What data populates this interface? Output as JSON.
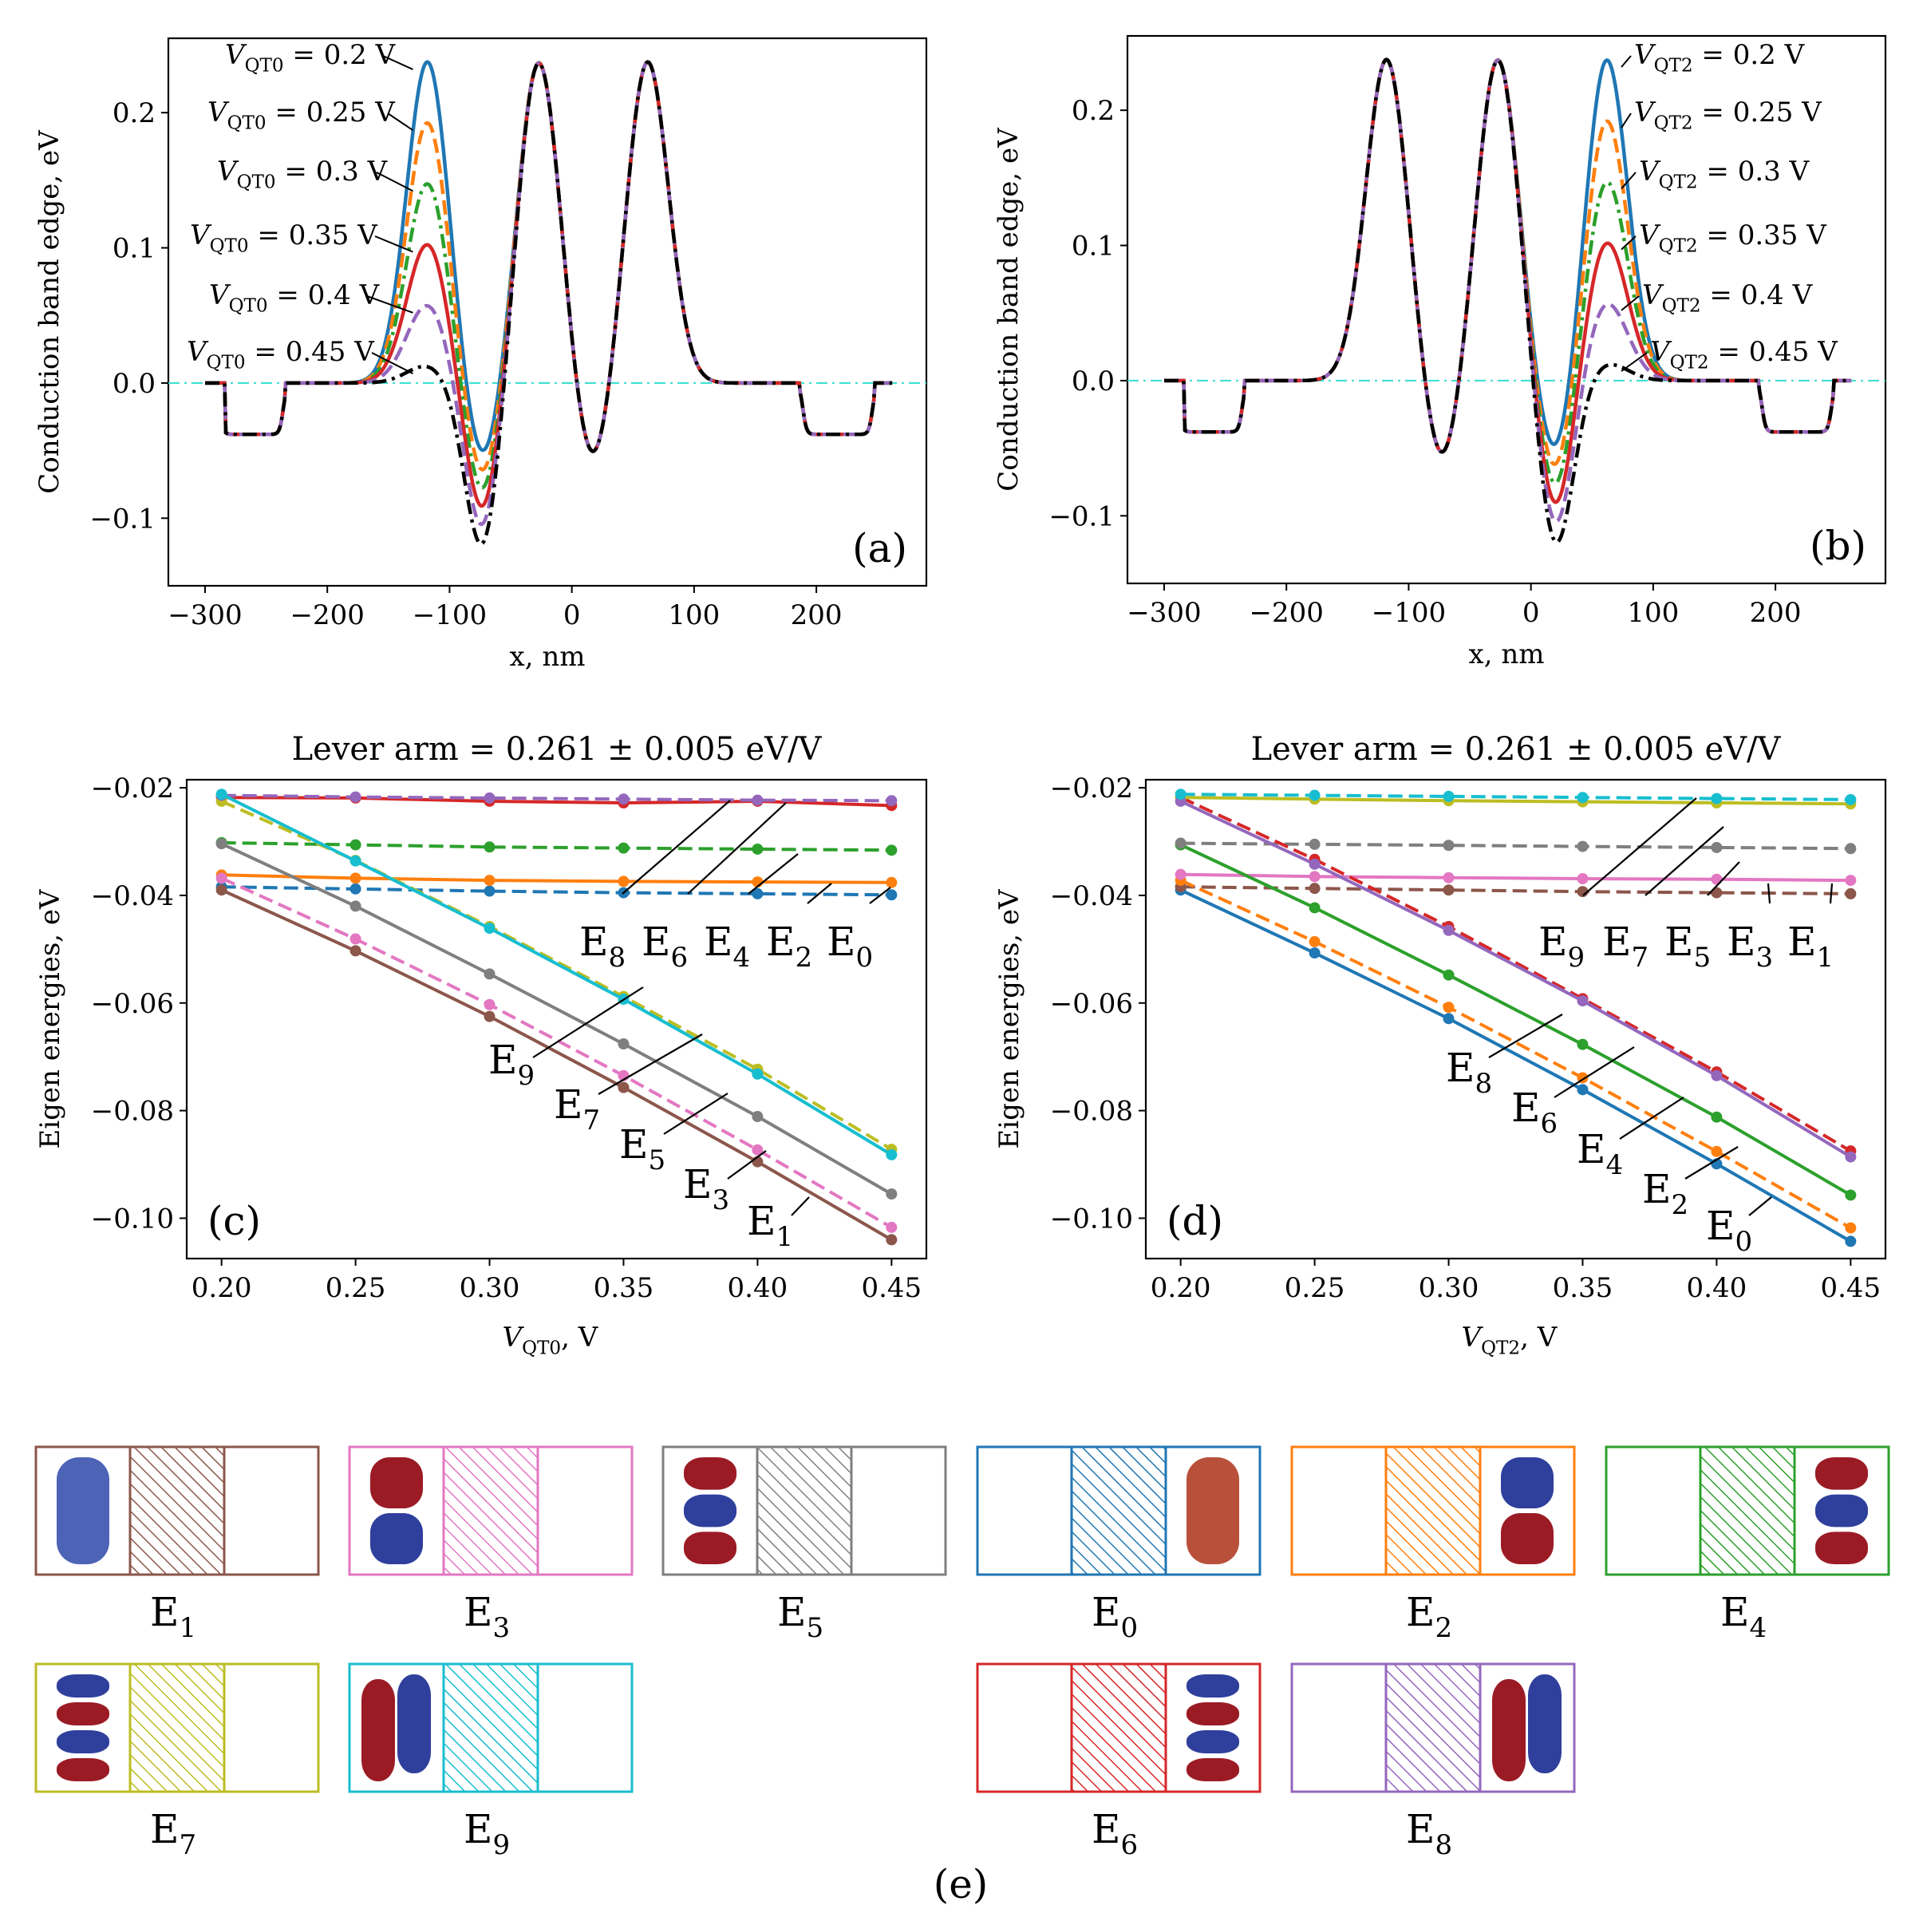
{
  "colors": {
    "c0": "#1f77b4",
    "c1": "#ff7f0e",
    "c2": "#2ca02c",
    "c3": "#d62728",
    "c4": "#9467bd",
    "c5": "#8c564b",
    "c6": "#e377c2",
    "c7": "#7f7f7f",
    "c8": "#bcbd22",
    "c9": "#17becf",
    "black": "#000000",
    "zero_line": "#40e0d0",
    "blob_red": "#9b1b25",
    "blob_blue": "#2f3f9c",
    "blob_orange": "#b8503a",
    "blob_light_blue": "#4c63b6"
  },
  "chart_data": [
    {
      "id": "a",
      "type": "line",
      "panel_label": "(a)",
      "xlabel": "x, nm",
      "ylabel": "Conduction band edge, eV",
      "xlim": [
        -330,
        290
      ],
      "ylim": [
        -0.15,
        0.255
      ],
      "xticks": [
        -300,
        -200,
        -100,
        0,
        100,
        200
      ],
      "xtick_labels": [
        "−300",
        "−200",
        "−100",
        "0",
        "100",
        "200"
      ],
      "yticks": [
        -0.1,
        0.0,
        0.1,
        0.2
      ],
      "ytick_labels": [
        "−0.1",
        "0.0",
        "0.1",
        "0.2"
      ],
      "varied_barrier": "left",
      "reference_line": {
        "y": 0.0,
        "style": "dash-dot"
      },
      "series_note": "profiles for six gate voltages",
      "series": [
        {
          "voltage": 0.2,
          "barrier_peak": 0.238,
          "well_min": -0.063,
          "color_key": "c0",
          "dash": "solid"
        },
        {
          "voltage": 0.25,
          "barrier_peak": 0.193,
          "well_min": -0.076,
          "color_key": "c1",
          "dash": "dashed"
        },
        {
          "voltage": 0.3,
          "barrier_peak": 0.148,
          "well_min": -0.088,
          "color_key": "c2",
          "dash": "dashdot"
        },
        {
          "voltage": 0.35,
          "barrier_peak": 0.103,
          "well_min": -0.1,
          "color_key": "c3",
          "dash": "solid"
        },
        {
          "voltage": 0.4,
          "barrier_peak": 0.058,
          "well_min": -0.112,
          "color_key": "c4",
          "dash": "dashed"
        },
        {
          "voltage": 0.45,
          "barrier_peak": 0.013,
          "well_min": -0.125,
          "color_key": "black",
          "dash": "dashdot"
        }
      ],
      "annotations": [
        {
          "var": "V",
          "sub": "QT0",
          "rest": " = 0.2 V"
        },
        {
          "var": "V",
          "sub": "QT0",
          "rest": " = 0.25 V"
        },
        {
          "var": "V",
          "sub": "QT0",
          "rest": " = 0.3 V"
        },
        {
          "var": "V",
          "sub": "QT0",
          "rest": " = 0.35 V"
        },
        {
          "var": "V",
          "sub": "QT0",
          "rest": " = 0.4 V"
        },
        {
          "var": "V",
          "sub": "QT0",
          "rest": " = 0.45 V"
        }
      ]
    },
    {
      "id": "b",
      "type": "line",
      "panel_label": "(b)",
      "xlabel": "x, nm",
      "ylabel": "Conduction band edge, eV",
      "xlim": [
        -330,
        290
      ],
      "ylim": [
        -0.15,
        0.255
      ],
      "xticks": [
        -300,
        -200,
        -100,
        0,
        100,
        200
      ],
      "xtick_labels": [
        "−300",
        "−200",
        "−100",
        "0",
        "100",
        "200"
      ],
      "yticks": [
        -0.1,
        0.0,
        0.1,
        0.2
      ],
      "ytick_labels": [
        "−0.1",
        "0.0",
        "0.1",
        "0.2"
      ],
      "varied_barrier": "right",
      "reference_line": {
        "y": 0.0,
        "style": "dash-dot"
      },
      "series": [
        {
          "voltage": 0.2,
          "barrier_peak": 0.238,
          "well_min": -0.063,
          "color_key": "c0",
          "dash": "solid"
        },
        {
          "voltage": 0.25,
          "barrier_peak": 0.193,
          "well_min": -0.076,
          "color_key": "c1",
          "dash": "dashed"
        },
        {
          "voltage": 0.3,
          "barrier_peak": 0.148,
          "well_min": -0.088,
          "color_key": "c2",
          "dash": "dashdot"
        },
        {
          "voltage": 0.35,
          "barrier_peak": 0.103,
          "well_min": -0.1,
          "color_key": "c3",
          "dash": "solid"
        },
        {
          "voltage": 0.4,
          "barrier_peak": 0.058,
          "well_min": -0.112,
          "color_key": "c4",
          "dash": "dashed"
        },
        {
          "voltage": 0.45,
          "barrier_peak": 0.013,
          "well_min": -0.125,
          "color_key": "black",
          "dash": "dashdot"
        }
      ],
      "annotations": [
        {
          "var": "V",
          "sub": "QT2",
          "rest": " = 0.2 V"
        },
        {
          "var": "V",
          "sub": "QT2",
          "rest": " = 0.25 V"
        },
        {
          "var": "V",
          "sub": "QT2",
          "rest": " = 0.3 V"
        },
        {
          "var": "V",
          "sub": "QT2",
          "rest": " = 0.35 V"
        },
        {
          "var": "V",
          "sub": "QT2",
          "rest": " = 0.4 V"
        },
        {
          "var": "V",
          "sub": "QT2",
          "rest": " = 0.45 V"
        }
      ]
    },
    {
      "id": "c",
      "type": "line",
      "title": "Lever arm = 0.261 ± 0.005 eV/V",
      "panel_label": "(c)",
      "xlabel_var": "V",
      "xlabel_sub": "QT0",
      "xlabel_rest": ", V",
      "ylabel": "Eigen energies, eV",
      "xlim": [
        0.187,
        0.463
      ],
      "ylim": [
        -0.1075,
        -0.0185
      ],
      "xticks": [
        0.2,
        0.25,
        0.3,
        0.35,
        0.4,
        0.45
      ],
      "xtick_labels": [
        "0.20",
        "0.25",
        "0.30",
        "0.35",
        "0.40",
        "0.45"
      ],
      "yticks": [
        -0.1,
        -0.08,
        -0.06,
        -0.04,
        -0.02
      ],
      "ytick_labels": [
        "−0.10",
        "−0.08",
        "−0.06",
        "−0.04",
        "−0.02"
      ],
      "x": [
        0.2,
        0.25,
        0.3,
        0.35,
        0.4,
        0.45
      ],
      "series": [
        {
          "name": "E0",
          "color_key": "c0",
          "dash": "dashed",
          "values": [
            -0.0384,
            -0.0388,
            -0.0392,
            -0.0395,
            -0.0397,
            -0.0399
          ]
        },
        {
          "name": "E1",
          "color_key": "c5",
          "dash": "solid",
          "values": [
            -0.039,
            -0.0503,
            -0.0625,
            -0.0757,
            -0.0895,
            -0.104
          ]
        },
        {
          "name": "E2",
          "color_key": "c1",
          "dash": "solid",
          "values": [
            -0.0362,
            -0.0368,
            -0.0372,
            -0.0374,
            -0.0375,
            -0.0376
          ]
        },
        {
          "name": "E3",
          "color_key": "c6",
          "dash": "dashed",
          "values": [
            -0.0368,
            -0.0481,
            -0.0603,
            -0.0735,
            -0.0873,
            -0.1017
          ]
        },
        {
          "name": "E4",
          "color_key": "c2",
          "dash": "dashed",
          "values": [
            -0.0302,
            -0.0306,
            -0.031,
            -0.0312,
            -0.0314,
            -0.0316
          ]
        },
        {
          "name": "E5",
          "color_key": "c7",
          "dash": "solid",
          "values": [
            -0.0304,
            -0.042,
            -0.0546,
            -0.0676,
            -0.0811,
            -0.0955
          ]
        },
        {
          "name": "E6",
          "color_key": "c3",
          "dash": "solid",
          "values": [
            -0.0218,
            -0.0219,
            -0.0225,
            -0.0228,
            -0.0225,
            -0.0233
          ]
        },
        {
          "name": "E7",
          "color_key": "c8",
          "dash": "dashed",
          "values": [
            -0.0225,
            -0.0335,
            -0.0458,
            -0.0588,
            -0.0723,
            -0.0872
          ]
        },
        {
          "name": "E8",
          "color_key": "c4",
          "dash": "dashed",
          "values": [
            -0.0214,
            -0.0217,
            -0.0219,
            -0.0221,
            -0.0223,
            -0.0224
          ]
        },
        {
          "name": "E9",
          "color_key": "c9",
          "dash": "solid",
          "values": [
            -0.0212,
            -0.0336,
            -0.0461,
            -0.0593,
            -0.0732,
            -0.0882
          ]
        }
      ],
      "labels": [
        {
          "base": "E",
          "sub": "8"
        },
        {
          "base": "E",
          "sub": "6"
        },
        {
          "base": "E",
          "sub": "4"
        },
        {
          "base": "E",
          "sub": "2"
        },
        {
          "base": "E",
          "sub": "0"
        },
        {
          "base": "E",
          "sub": "9"
        },
        {
          "base": "E",
          "sub": "7"
        },
        {
          "base": "E",
          "sub": "5"
        },
        {
          "base": "E",
          "sub": "3"
        },
        {
          "base": "E",
          "sub": "1"
        }
      ]
    },
    {
      "id": "d",
      "type": "line",
      "title": "Lever arm = 0.261 ± 0.005 eV/V",
      "panel_label": "(d)",
      "xlabel_var": "V",
      "xlabel_sub": "QT2",
      "xlabel_rest": ", V",
      "ylabel": "Eigen energies, eV",
      "xlim": [
        0.187,
        0.463
      ],
      "ylim": [
        -0.1075,
        -0.0185
      ],
      "xticks": [
        0.2,
        0.25,
        0.3,
        0.35,
        0.4,
        0.45
      ],
      "xtick_labels": [
        "0.20",
        "0.25",
        "0.30",
        "0.35",
        "0.40",
        "0.45"
      ],
      "yticks": [
        -0.1,
        -0.08,
        -0.06,
        -0.04,
        -0.02
      ],
      "ytick_labels": [
        "−0.10",
        "−0.08",
        "−0.06",
        "−0.04",
        "−0.02"
      ],
      "x": [
        0.2,
        0.25,
        0.3,
        0.35,
        0.4,
        0.45
      ],
      "series": [
        {
          "name": "E0",
          "color_key": "c0",
          "dash": "solid",
          "values": [
            -0.039,
            -0.0507,
            -0.0629,
            -0.0761,
            -0.0899,
            -0.1043
          ]
        },
        {
          "name": "E1",
          "color_key": "c5",
          "dash": "dashed",
          "values": [
            -0.0384,
            -0.0387,
            -0.039,
            -0.0393,
            -0.0395,
            -0.0397
          ]
        },
        {
          "name": "E2",
          "color_key": "c1",
          "dash": "dashed",
          "values": [
            -0.0372,
            -0.0486,
            -0.0608,
            -0.0739,
            -0.0876,
            -0.1018
          ]
        },
        {
          "name": "E3",
          "color_key": "c6",
          "dash": "solid",
          "values": [
            -0.0361,
            -0.0365,
            -0.0367,
            -0.0369,
            -0.037,
            -0.0372
          ]
        },
        {
          "name": "E4",
          "color_key": "c2",
          "dash": "solid",
          "values": [
            -0.0306,
            -0.0423,
            -0.0548,
            -0.0677,
            -0.0812,
            -0.0957
          ]
        },
        {
          "name": "E5",
          "color_key": "c7",
          "dash": "dashed",
          "values": [
            -0.0303,
            -0.0305,
            -0.0307,
            -0.0309,
            -0.0311,
            -0.0313
          ]
        },
        {
          "name": "E6",
          "color_key": "c3",
          "dash": "dashed",
          "values": [
            -0.0218,
            -0.0333,
            -0.0458,
            -0.0592,
            -0.0728,
            -0.0875
          ]
        },
        {
          "name": "E7",
          "color_key": "c8",
          "dash": "solid",
          "values": [
            -0.0218,
            -0.0221,
            -0.0224,
            -0.0226,
            -0.0228,
            -0.023
          ]
        },
        {
          "name": "E8",
          "color_key": "c4",
          "dash": "solid",
          "values": [
            -0.0225,
            -0.0342,
            -0.0465,
            -0.0596,
            -0.0735,
            -0.0886
          ]
        },
        {
          "name": "E9",
          "color_key": "c9",
          "dash": "dashed",
          "values": [
            -0.0212,
            -0.0214,
            -0.0216,
            -0.0218,
            -0.022,
            -0.0222
          ]
        }
      ],
      "labels": [
        {
          "base": "E",
          "sub": "9"
        },
        {
          "base": "E",
          "sub": "7"
        },
        {
          "base": "E",
          "sub": "5"
        },
        {
          "base": "E",
          "sub": "3"
        },
        {
          "base": "E",
          "sub": "1"
        },
        {
          "base": "E",
          "sub": "8"
        },
        {
          "base": "E",
          "sub": "6"
        },
        {
          "base": "E",
          "sub": "4"
        },
        {
          "base": "E",
          "sub": "2"
        },
        {
          "base": "E",
          "sub": "0"
        }
      ]
    }
  ],
  "states_panel": {
    "panel_label": "(e)",
    "row1": [
      {
        "base": "E",
        "sub": "1",
        "color_key": "c5",
        "dot": "left",
        "blobs": [
          "light_blue_tall"
        ]
      },
      {
        "base": "E",
        "sub": "3",
        "color_key": "c6",
        "dot": "left",
        "blobs": [
          "red",
          "blue"
        ]
      },
      {
        "base": "E",
        "sub": "5",
        "color_key": "c7",
        "dot": "left",
        "blobs": [
          "red",
          "blue",
          "red"
        ]
      },
      {
        "base": "E",
        "sub": "0",
        "color_key": "c0",
        "dot": "right",
        "blobs": [
          "orange_tall"
        ]
      },
      {
        "base": "E",
        "sub": "2",
        "color_key": "c1",
        "dot": "right",
        "blobs": [
          "blue",
          "red"
        ]
      },
      {
        "base": "E",
        "sub": "4",
        "color_key": "c2",
        "dot": "right",
        "blobs": [
          "red",
          "blue",
          "red"
        ]
      }
    ],
    "row2": [
      {
        "base": "E",
        "sub": "7",
        "color_key": "c8",
        "dot": "left",
        "blobs": [
          "blue",
          "red",
          "blue",
          "red"
        ]
      },
      {
        "base": "E",
        "sub": "9",
        "color_key": "c9",
        "dot": "left",
        "blobs": [
          "side_red_blue"
        ]
      },
      {
        "base": "E",
        "sub": "6",
        "color_key": "c3",
        "dot": "right",
        "blobs": [
          "blue",
          "red",
          "blue",
          "red"
        ]
      },
      {
        "base": "E",
        "sub": "8",
        "color_key": "c4",
        "dot": "right",
        "blobs": [
          "side_red_blue"
        ]
      }
    ]
  }
}
